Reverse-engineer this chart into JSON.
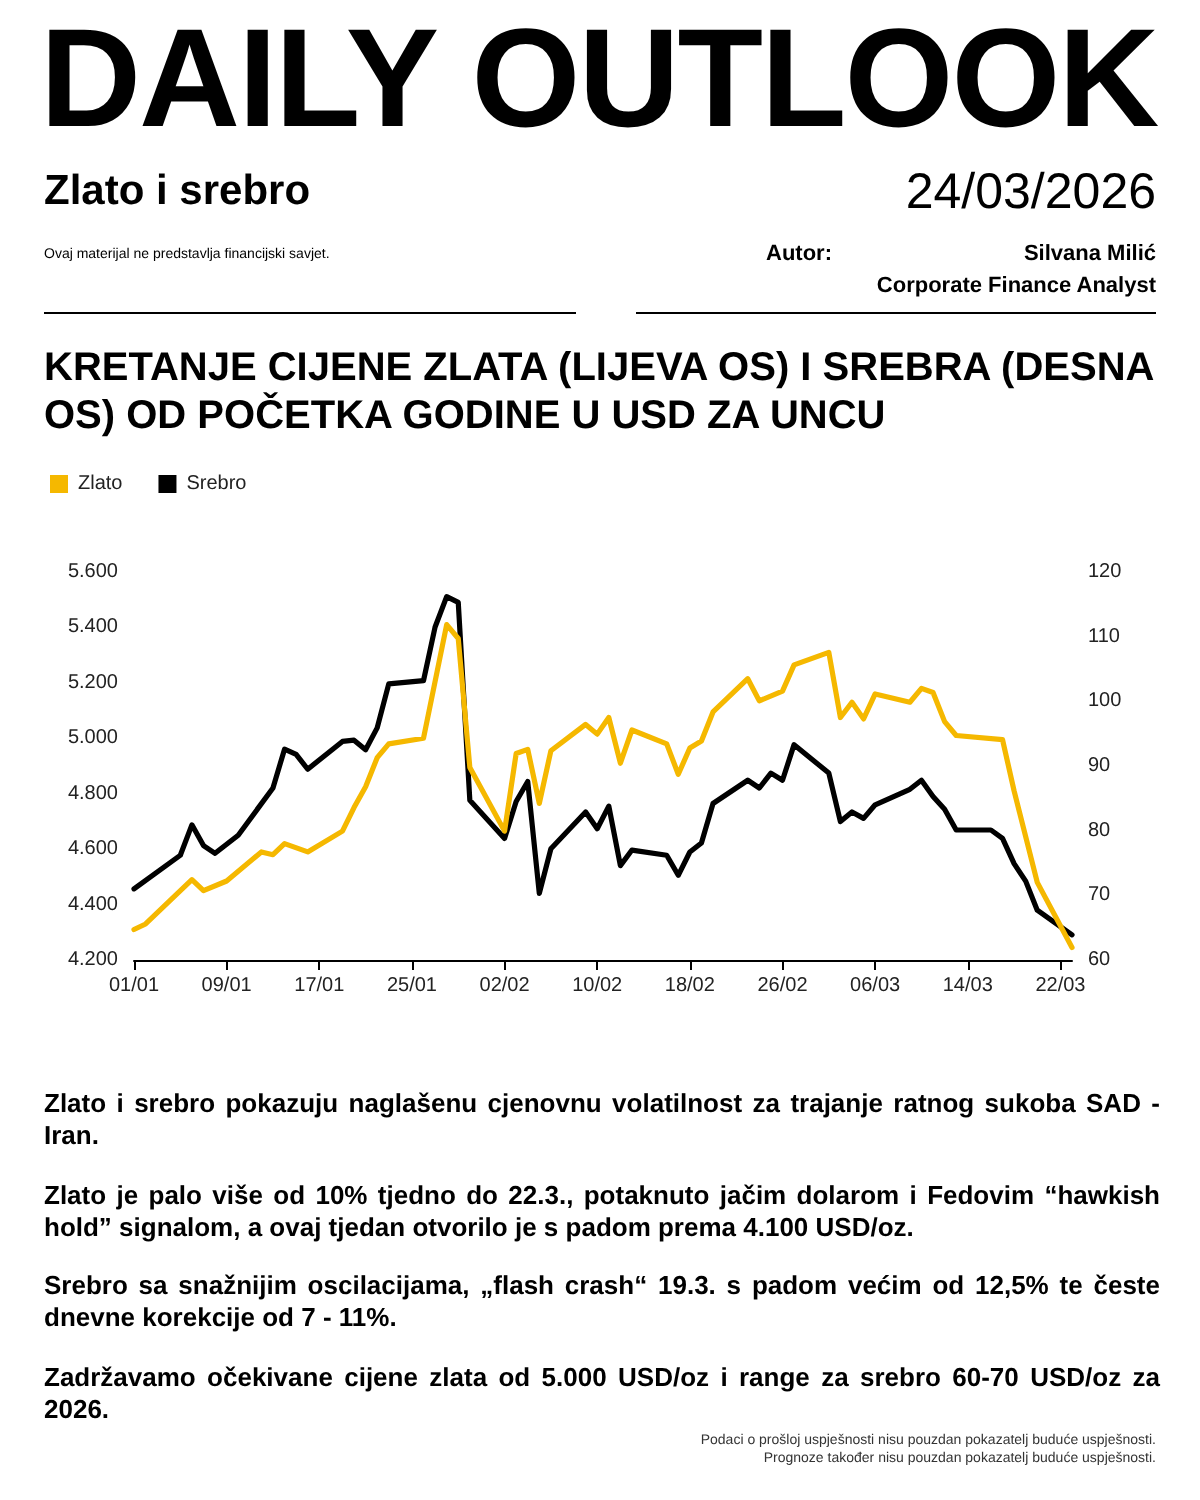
{
  "chart_data": {
    "type": "line",
    "title": "KRETANJE CIJENE ZLATA (LIJEVA OS) I SREBRA (DESNA OS) OD POČETKA GODINE U USD ZA UNCU",
    "annotations": [
      "DAILY OUTLOOK",
      "Zlato i srebro",
      "24/03/2026",
      "Autor:",
      "Silvana Milić",
      "Corporate Finance Analyst",
      "Ovaj materijal ne predstavlja financijski savjet.",
      "Zlato i srebro pokazuju naglašenu cjenovnu volatilnost za trajanje ratnog sukoba SAD - Iran.",
      "Zlato je palo više od 10% tjedno do 22.3., potaknuto jačim dolarom i Fedovim “hawkish hold” signalom, a ovaj tjedan otvorilo je s padom prema 4.100 USD/oz.",
      "Srebro sa snažnijim oscilacijama, „flash crash“ 19.3. s padom većim od 12,5% te česte dnevne korekcije od 7 - 11%.",
      "Zadržavamo očekivane cijene zlata od 5.000 USD/oz i range za srebro 60-70 USD/oz za 2026.",
      "Podaci o prošloj uspješnosti nisu pouzdan pokazatelj buduće uspješnosti.",
      "Prognoze također nisu pouzdan pokazatelj buduće uspješnosti."
    ],
    "legend": "top left",
    "marker": "none",
    "line_style": "solid",
    "grid": false,
    "xlim": [
      "--01-01",
      "--03-23"
    ],
    "xticks": [
      {
        "value": "--01-01",
        "label": "01/01"
      },
      {
        "value": "--01-09",
        "label": "09/01"
      },
      {
        "value": "--01-17",
        "label": "17/01"
      },
      {
        "value": "--01-25",
        "label": "25/01"
      },
      {
        "value": "--02-02",
        "label": "02/02"
      },
      {
        "value": "--02-10",
        "label": "10/02"
      },
      {
        "value": "--02-18",
        "label": "18/02"
      },
      {
        "value": "--02-26",
        "label": "26/02"
      },
      {
        "value": "--03-06",
        "label": "06/03"
      },
      {
        "value": "--03-14",
        "label": "14/03"
      },
      {
        "value": "--03-22",
        "label": "22/03"
      }
    ],
    "ylim": [
      4200,
      5600
    ],
    "yticks": [
      {
        "value": 4200,
        "label": "4.200"
      },
      {
        "value": 4400,
        "label": "4.400"
      },
      {
        "value": 4600,
        "label": "4.600"
      },
      {
        "value": 4800,
        "label": "4.800"
      },
      {
        "value": 5000,
        "label": "5.000"
      },
      {
        "value": 5200,
        "label": "5.200"
      },
      {
        "value": 5400,
        "label": "5.400"
      },
      {
        "value": 5600,
        "label": "5.600"
      }
    ],
    "y2lim": [
      60,
      120
    ],
    "y2ticks": [
      60,
      70,
      80,
      90,
      100,
      110,
      120
    ],
    "series": [
      {
        "name": "Zlato",
        "color": "#f5b800",
        "x": [
          "--01-01",
          "--01-02",
          "--01-06",
          "--01-07",
          "--01-09",
          "--01-12",
          "--01-13",
          "--01-14",
          "--01-16",
          "--01-19",
          "--01-20",
          "--01-21",
          "--01-22",
          "--01-23",
          "--01-26",
          "--01-28",
          "--01-29",
          "--01-30",
          "--02-02",
          "--02-03",
          "--02-04",
          "--02-05",
          "--02-06",
          "--02-09",
          "--02-10",
          "--02-11",
          "--02-12",
          "--02-13",
          "--02-16",
          "--02-17",
          "--02-18",
          "--02-19",
          "--02-20",
          "--02-23",
          "--02-24",
          "--02-26",
          "--02-27",
          "--03-02",
          "--03-03",
          "--03-04",
          "--03-05",
          "--03-06",
          "--03-09",
          "--03-10",
          "--03-11",
          "--03-12",
          "--03-13",
          "--03-17",
          "--03-18",
          "--03-20",
          "--03-23"
        ],
        "values": [
          4310,
          4330,
          4490,
          4450,
          4485,
          4590,
          4580,
          4620,
          4590,
          4665,
          4750,
          4825,
          4930,
          4980,
          5000,
          5410,
          5360,
          4895,
          4665,
          4945,
          4960,
          4765,
          4955,
          5050,
          5015,
          5075,
          4910,
          5030,
          4980,
          4870,
          4965,
          4990,
          5095,
          5215,
          5135,
          5170,
          5265,
          5310,
          5075,
          5130,
          5070,
          5160,
          5130,
          5180,
          5165,
          5060,
          5010,
          4995,
          4810,
          4480,
          4245
        ]
      },
      {
        "name": "Srebro",
        "color": "#000000",
        "axis": "y2",
        "x": [
          "--01-01",
          "--01-05",
          "--01-06",
          "--01-07",
          "--01-08",
          "--01-10",
          "--01-13",
          "--01-14",
          "--01-15",
          "--01-16",
          "--01-19",
          "--01-20",
          "--01-21",
          "--01-22",
          "--01-23",
          "--01-26",
          "--01-27",
          "--01-28",
          "--01-29",
          "--01-30",
          "--02-02",
          "--02-03",
          "--02-04",
          "--02-05",
          "--02-06",
          "--02-09",
          "--02-10",
          "--02-11",
          "--02-12",
          "--02-13",
          "--02-16",
          "--02-17",
          "--02-18",
          "--02-19",
          "--02-20",
          "--02-23",
          "--02-24",
          "--02-25",
          "--02-26",
          "--02-27",
          "--03-02",
          "--03-03",
          "--03-04",
          "--03-05",
          "--03-06",
          "--03-09",
          "--03-10",
          "--03-11",
          "--03-12",
          "--03-13",
          "--03-16",
          "--03-17",
          "--03-18",
          "--03-19",
          "--03-20",
          "--03-23"
        ],
        "values": [
          71,
          76.2,
          80.9,
          77.7,
          76.5,
          79.3,
          86.6,
          92.6,
          91.8,
          89.5,
          93.8,
          94,
          92.5,
          95.9,
          102.7,
          103.2,
          111.5,
          116.2,
          115.3,
          84.7,
          78.8,
          84.5,
          87.6,
          70.3,
          77.2,
          82.9,
          80.3,
          83.8,
          74.6,
          77,
          76.2,
          73.1,
          76.7,
          78.1,
          84.2,
          87.8,
          86.6,
          88.9,
          87.8,
          93.3,
          88.9,
          81.4,
          82.9,
          81.9,
          84,
          86.4,
          87.8,
          85.3,
          83.3,
          80.1,
          80.1,
          78.8,
          74.9,
          72.2,
          67.7,
          63.9
        ]
      }
    ]
  }
}
